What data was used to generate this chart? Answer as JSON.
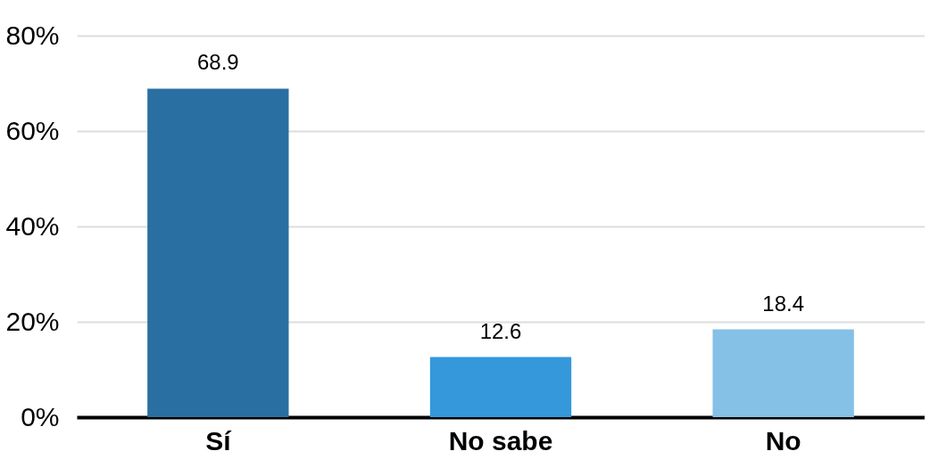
{
  "chart_data": {
    "type": "bar",
    "categories": [
      "Sí",
      "No sabe",
      "No"
    ],
    "values": [
      68.9,
      12.6,
      18.4
    ],
    "colors": [
      "#2a6fa1",
      "#3498db",
      "#85c0e6"
    ],
    "ylim": [
      0,
      80
    ],
    "yticks": [
      {
        "value": 0,
        "label": "0%"
      },
      {
        "value": 20,
        "label": "20%"
      },
      {
        "value": 40,
        "label": "40%"
      },
      {
        "value": 60,
        "label": "60%"
      },
      {
        "value": 80,
        "label": "80%"
      }
    ],
    "grid": "y",
    "data_labels": true,
    "legend": false
  }
}
